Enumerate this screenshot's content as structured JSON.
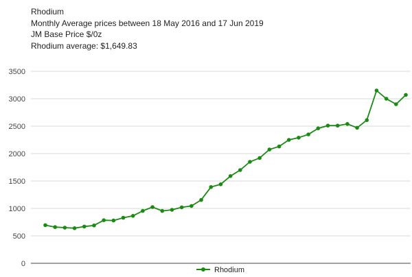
{
  "header": {
    "line1": "Rhodium",
    "line2": "Monthly Average prices between 18 May 2016 and 17 Jun 2019",
    "line3": "JM Base Price $/0z",
    "line4": "Rhodium average: $1,649.83"
  },
  "colors": {
    "series": "#1a8a12",
    "grid": "#d9d9d9",
    "axis": "#444444"
  },
  "chart_data": {
    "type": "line",
    "title": "Rhodium",
    "xlabel": "",
    "ylabel": "",
    "ylim": [
      0,
      3500
    ],
    "yticks": [
      0,
      500,
      1000,
      1500,
      2000,
      2500,
      3000,
      3500
    ],
    "grid": true,
    "legend_position": "bottom",
    "series": [
      {
        "name": "Rhodium",
        "values": [
          695,
          660,
          650,
          640,
          670,
          690,
          785,
          780,
          830,
          865,
          955,
          1025,
          955,
          975,
          1020,
          1045,
          1155,
          1390,
          1440,
          1590,
          1700,
          1850,
          1920,
          2075,
          2130,
          2250,
          2290,
          2350,
          2460,
          2510,
          2510,
          2540,
          2470,
          2610,
          3150,
          3000,
          2900,
          3070
        ]
      }
    ]
  }
}
